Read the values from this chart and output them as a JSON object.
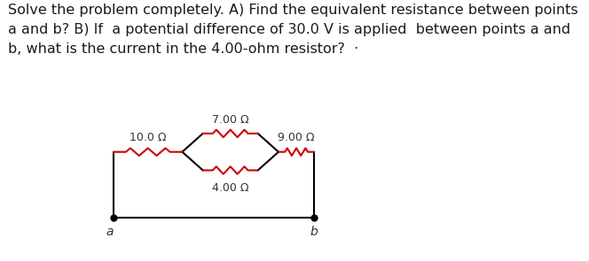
{
  "title_text": "Solve the problem completely. A) Find the equivalent resistance between points\na and b? B) If  a potential difference of 30.0 V is applied  between points a and\nb, what is the current in the 4.00-ohm resistor?  ·",
  "title_fontsize": 11.5,
  "background_color": "#ffffff",
  "resistor_color": "#cc0000",
  "wire_color": "#000000",
  "label_color": "#333333",
  "R10_label": "10.0 Ω",
  "R7_label": "7.00 Ω",
  "R9_label": "9.00 Ω",
  "R4_label": "4.00 Ω",
  "point_a_label": "a",
  "point_b_label": "b"
}
